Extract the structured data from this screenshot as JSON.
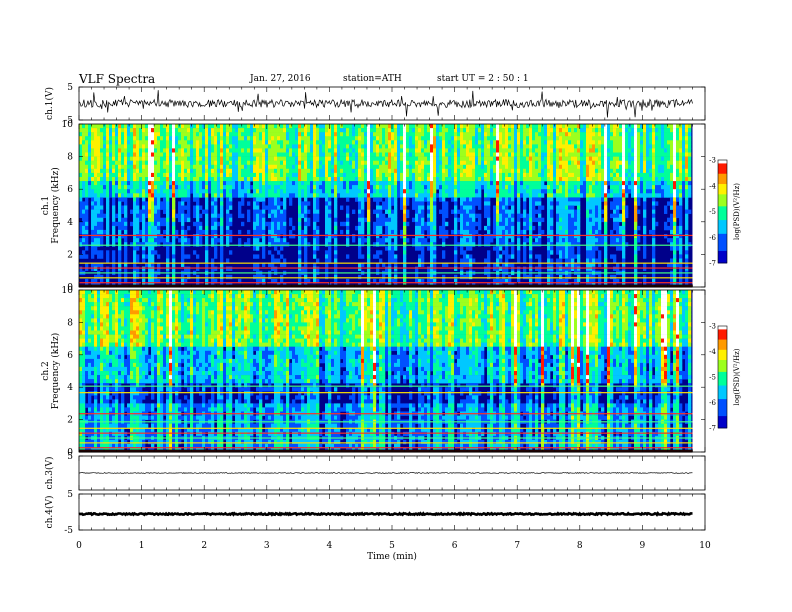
{
  "header": {
    "title": "VLF  Spectra",
    "date": "Jan. 27, 2016",
    "station": "station=ATH",
    "start": "start  UT  =   2 : 50 : 1"
  },
  "chart_data": [
    {
      "type": "line",
      "panel": "ch1",
      "ylabel": "ch.1(V)",
      "ylim": [
        -5,
        5
      ],
      "yticks": [
        "5",
        "-5"
      ],
      "xlim": [
        0,
        10
      ]
    },
    {
      "type": "heatmap",
      "panel": "ch1-spectrogram",
      "ylabel": [
        "ch.1",
        "Frequency  (kHz)"
      ],
      "ylim": [
        0,
        10
      ],
      "yticks": [
        "0",
        "2",
        "4",
        "6",
        "8",
        "10"
      ],
      "colorbar": {
        "label": "log(PSD)(V²/Hz)",
        "range": [
          -7,
          -3
        ],
        "ticks": [
          "-3",
          "-4",
          "-5",
          "-6",
          "-7"
        ]
      }
    },
    {
      "type": "heatmap",
      "panel": "ch2-spectrogram",
      "ylabel": [
        "ch.2",
        "Frequency  (kHz)"
      ],
      "ylim": [
        0,
        10
      ],
      "yticks": [
        "0",
        "2",
        "4",
        "6",
        "8",
        "10"
      ],
      "colorbar": {
        "label": "log(PSD)(V²/Hz)",
        "range": [
          -7,
          -3
        ],
        "ticks": [
          "-3",
          "-4",
          "-5",
          "-6",
          "-7"
        ]
      }
    },
    {
      "type": "line",
      "panel": "ch3",
      "ylabel": "ch.3(V)",
      "ylim": [
        -5,
        5
      ],
      "yticks": [
        "5"
      ]
    },
    {
      "type": "line",
      "panel": "ch4",
      "ylabel": "ch.4(V)",
      "ylim": [
        -5,
        5
      ],
      "yticks": [
        "5",
        "-5"
      ]
    },
    {
      "type": "axis",
      "xlabel": "Time  (min)",
      "xlim": [
        0,
        10
      ],
      "xticks": [
        "0",
        "1",
        "2",
        "3",
        "4",
        "5",
        "6",
        "7",
        "8",
        "9",
        "10"
      ],
      "data_end_min": 9.8
    }
  ]
}
